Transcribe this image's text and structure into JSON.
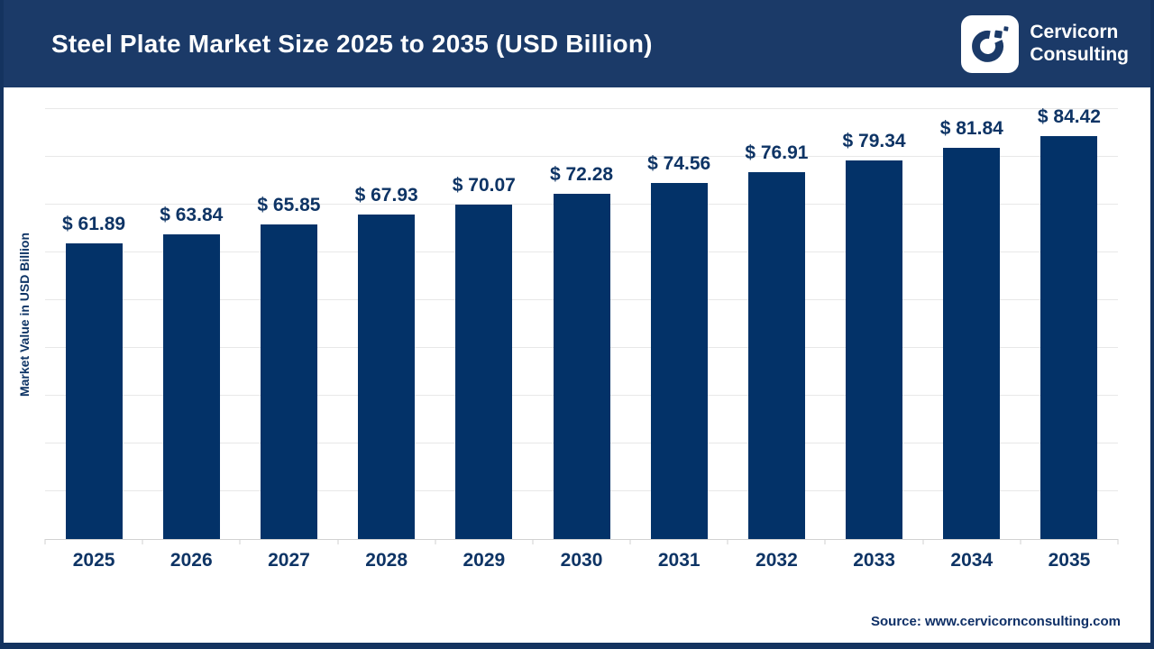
{
  "header": {
    "brand_line1": "Cervicorn",
    "brand_line2": "Consulting",
    "logo_icon": "cervicorn-c-mark"
  },
  "chart_data": {
    "type": "bar",
    "title": "Steel Plate Market Size 2025 to 2035 (USD Billion)",
    "categories": [
      "2025",
      "2026",
      "2027",
      "2028",
      "2029",
      "2030",
      "2031",
      "2032",
      "2033",
      "2034",
      "2035"
    ],
    "values": [
      61.89,
      63.84,
      65.85,
      67.93,
      70.07,
      72.28,
      74.56,
      76.91,
      79.34,
      81.84,
      84.42
    ],
    "value_prefix": "$ ",
    "xlabel": "",
    "ylabel": "Market Value in USD Billion",
    "ylim": [
      0,
      94
    ],
    "gridline_step": 10,
    "grid": true,
    "legend": "none",
    "bar_color": "#033268"
  },
  "footer": {
    "source": "Source: www.cervicornconsulting.com"
  },
  "colors": {
    "header_bg": "#1b3a68",
    "bar": "#033268",
    "navy_text": "#0e3465",
    "gridline": "#e8e8e8",
    "axis_line": "#d2d2d2",
    "page_border": "#14335f"
  }
}
